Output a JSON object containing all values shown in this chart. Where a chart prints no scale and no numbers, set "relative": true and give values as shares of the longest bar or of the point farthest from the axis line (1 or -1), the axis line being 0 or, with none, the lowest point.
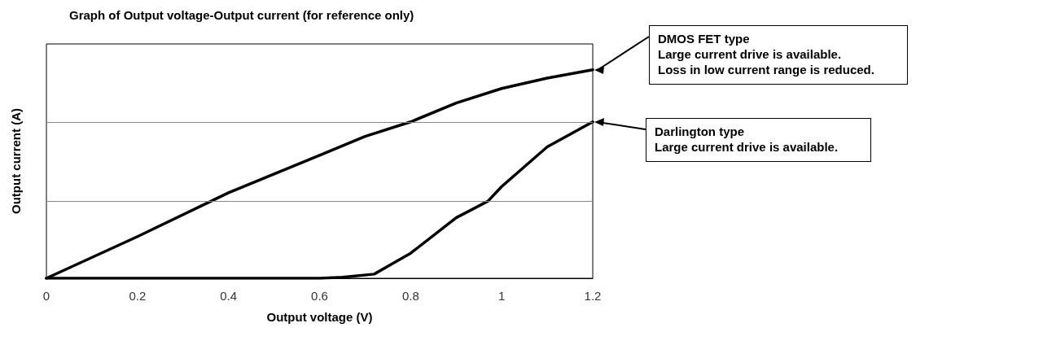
{
  "chart_data": {
    "type": "line",
    "title": "Graph of Output voltage-Output current (for reference only)",
    "xlabel": "Output voltage (V)",
    "ylabel": "Output current (A)",
    "relative": true,
    "xlim": [
      0,
      1.2
    ],
    "xticks": [
      0,
      0.2,
      0.4,
      0.6,
      0.8,
      1,
      1.2
    ],
    "ref_lines": [
      {
        "axis": "y",
        "value": 0.37,
        "color": "#888888"
      },
      {
        "axis": "y",
        "value": 0.75,
        "color": "#888888"
      }
    ],
    "marker": "none",
    "line_style": "solid",
    "series": [
      {
        "color": "#000000",
        "x": [
          0,
          0.2,
          0.4,
          0.6,
          0.7,
          0.8,
          0.9,
          1,
          1.1,
          1.2
        ],
        "values": [
          0,
          0.2,
          0.41,
          0.59,
          0.68,
          0.75,
          0.84,
          0.91,
          0.96,
          1
        ]
      },
      {
        "color": "#000000",
        "x": [
          0,
          0.3,
          0.6,
          0.65,
          0.72,
          0.76,
          0.8,
          0.9,
          0.97,
          1,
          1.1,
          1.2
        ],
        "values": [
          0,
          0,
          0,
          0.005,
          0.02,
          0.07,
          0.12,
          0.29,
          0.37,
          0.44,
          0.63,
          0.75
        ]
      }
    ],
    "annotations": [
      {
        "text": "DMOS FET type\nLarge current drive is available.\nLoss in low current range is reduced.",
        "x": 1.2,
        "y": 1
      },
      {
        "text": "Darlington type\nLarge current drive is available.",
        "x": 1.2,
        "y": 0.75
      }
    ]
  }
}
